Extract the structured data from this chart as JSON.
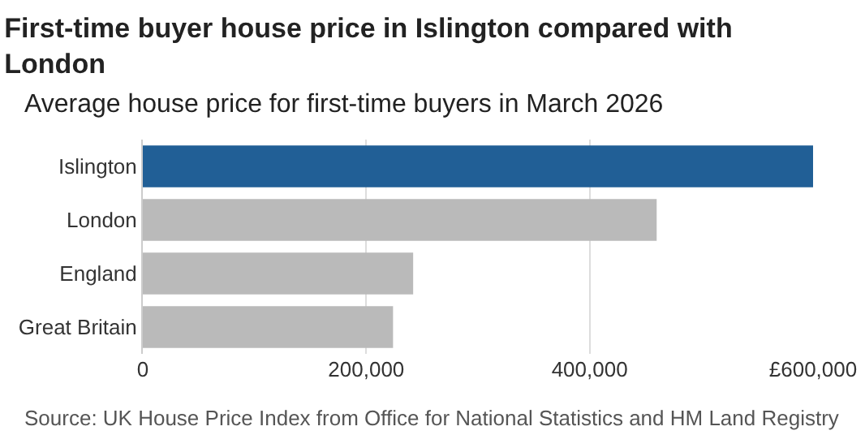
{
  "chart_data": {
    "type": "bar",
    "orientation": "horizontal",
    "title": "First-time buyer house price in Islington compared with London",
    "subtitle": "Average house price for first-time buyers in March 2026",
    "categories": [
      "Islington",
      "London",
      "England",
      "Great Britain"
    ],
    "values": [
      600000,
      460000,
      242000,
      224000
    ],
    "colors": [
      "#215f96",
      "#bababa",
      "#bababa",
      "#bababa"
    ],
    "xlim": [
      0,
      600000
    ],
    "xticks": [
      0,
      {
        "value": 200000,
        "label": "200,000"
      },
      {
        "value": 400000,
        "label": "400,000"
      },
      {
        "value": 600000,
        "label": "£600,000"
      }
    ],
    "grid": "x",
    "annotations": [
      "Source: UK House Price Index from Office for National Statistics and HM Land Registry"
    ]
  }
}
